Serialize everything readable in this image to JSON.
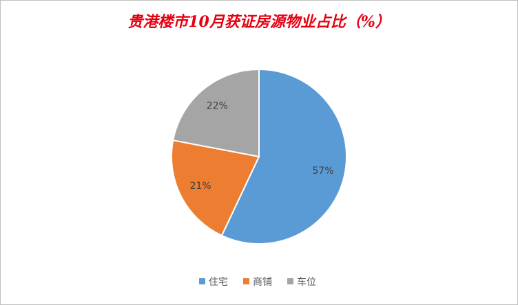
{
  "chart_data": {
    "type": "pie",
    "title": "贵港楼市10月获证房源物业占比（%）",
    "categories": [
      "住宅",
      "商铺",
      "车位"
    ],
    "values": [
      57,
      21,
      22
    ],
    "value_labels": [
      "57%",
      "21%",
      "22%"
    ],
    "colors": [
      "#5b9bd5",
      "#ed7d31",
      "#a5a5a5"
    ],
    "legend": "bottom"
  }
}
